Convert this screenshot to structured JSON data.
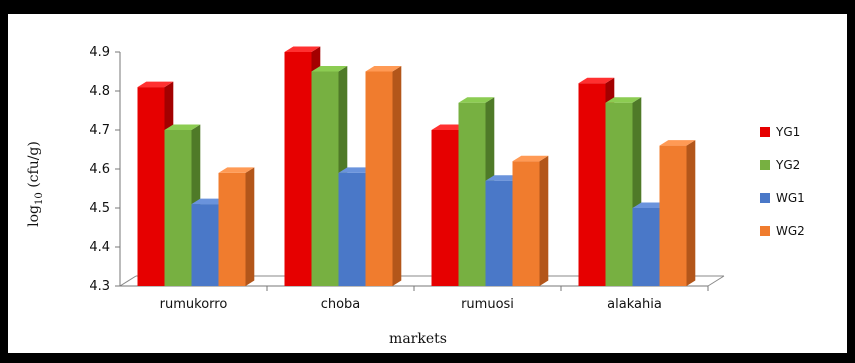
{
  "chart_data": {
    "type": "bar",
    "style": "3d-clustered-column",
    "categories": [
      "rumukorro",
      "choba",
      "rumuosi",
      "alakahia"
    ],
    "series": [
      {
        "name": "YG1",
        "values": [
          4.81,
          4.9,
          4.7,
          4.82
        ],
        "color": "#e60000",
        "side": "#a30000",
        "top": "#ff3030"
      },
      {
        "name": "YG2",
        "values": [
          4.7,
          4.85,
          4.77,
          4.77
        ],
        "color": "#77b041",
        "side": "#4f7a28",
        "top": "#8ccc52"
      },
      {
        "name": "WG1",
        "values": [
          4.51,
          4.59,
          4.57,
          4.5
        ],
        "color": "#4a78c8",
        "side": "#2f548f",
        "top": "#6a93dc"
      },
      {
        "name": "WG2",
        "values": [
          4.59,
          4.85,
          4.62,
          4.66
        ],
        "color": "#f07c2e",
        "side": "#b3561a",
        "top": "#ff9a55"
      }
    ],
    "yticks": [
      "4.3",
      "4.4",
      "4.5",
      "4.6",
      "4.7",
      "4.8",
      "4.9"
    ],
    "ylim": [
      4.3,
      4.9
    ],
    "xlabel": "markets",
    "ylabel": "log10 (cfu/g)",
    "grid": false,
    "legend_position": "right"
  }
}
